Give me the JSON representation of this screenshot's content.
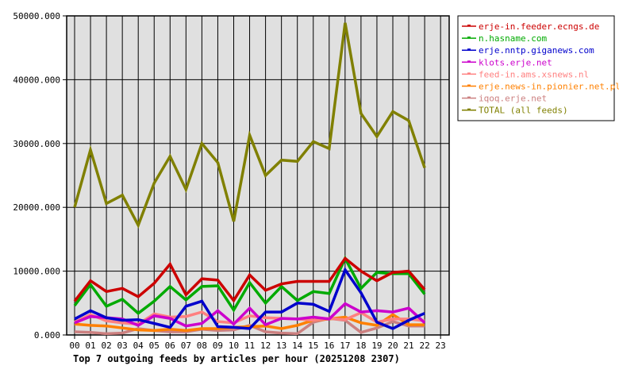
{
  "chart_data": {
    "type": "line",
    "title": "Top 7 outgoing feeds by articles per hour (20251208 2307)",
    "xlabel": "",
    "ylabel": "",
    "ylim": [
      0,
      50000
    ],
    "yticks": [
      "0.000",
      "10000.000",
      "20000.000",
      "30000.000",
      "40000.000",
      "50000.000"
    ],
    "categories": [
      "00",
      "01",
      "02",
      "03",
      "04",
      "05",
      "06",
      "07",
      "08",
      "09",
      "10",
      "11",
      "12",
      "13",
      "14",
      "15",
      "16",
      "17",
      "18",
      "19",
      "20",
      "21",
      "22",
      "23"
    ],
    "grid": true,
    "legend_position": "right",
    "series": [
      {
        "name": "erje-in.feeder.ecngs.de",
        "color": "#cc0000",
        "values": [
          5300,
          8500,
          6800,
          7300,
          6000,
          8100,
          11100,
          6300,
          8800,
          8600,
          5400,
          9400,
          7000,
          8000,
          8400,
          8400,
          8400,
          12000,
          10000,
          8500,
          9800,
          10000,
          7100
        ]
      },
      {
        "name": "n.hasname.com",
        "color": "#00aa00",
        "values": [
          4600,
          7900,
          4500,
          5600,
          3400,
          5300,
          7600,
          5500,
          7600,
          7700,
          3900,
          8200,
          5000,
          7600,
          5400,
          6800,
          6500,
          12000,
          7300,
          9800,
          9600,
          9600,
          6400
        ]
      },
      {
        "name": "erje.nntp.giganews.com",
        "color": "#0000cc",
        "values": [
          2500,
          3800,
          2700,
          2300,
          2400,
          1800,
          1200,
          4500,
          5300,
          1300,
          1200,
          1000,
          3600,
          3600,
          5000,
          4800,
          3700,
          10200,
          6600,
          2000,
          1000,
          2300,
          3400
        ]
      },
      {
        "name": "klots.erje.net",
        "color": "#cc00cc",
        "values": [
          1900,
          2900,
          2700,
          2500,
          1500,
          3000,
          2600,
          1400,
          1800,
          3800,
          1700,
          4200,
          1600,
          2600,
          2500,
          2800,
          2500,
          4900,
          3600,
          3800,
          3600,
          4200,
          1900
        ]
      },
      {
        "name": "feed-in.ams.xsnews.nl",
        "color": "#ff8080",
        "values": [
          2000,
          3200,
          2200,
          1900,
          1700,
          3300,
          2800,
          2900,
          3600,
          2100,
          1900,
          3000,
          2700,
          2600,
          2500,
          2300,
          2600,
          2400,
          3500,
          2000,
          2500,
          2500,
          2200
        ]
      },
      {
        "name": "erje.news-in.pionier.net.pl",
        "color": "#ff8000",
        "values": [
          1700,
          1500,
          1400,
          1100,
          800,
          700,
          900,
          700,
          1000,
          1000,
          1200,
          1300,
          1400,
          1000,
          1500,
          2300,
          2500,
          2800,
          1900,
          1500,
          3200,
          1600,
          1600
        ]
      },
      {
        "name": "iqoq.erje.net",
        "color": "#cc8080",
        "values": [
          500,
          400,
          200,
          300,
          1000,
          700,
          500,
          500,
          900,
          700,
          800,
          1500,
          500,
          300,
          200,
          2000,
          2600,
          2300,
          400,
          1100,
          2100,
          1400,
          1400
        ]
      },
      {
        "name": "TOTAL (all feeds)",
        "color": "#808000",
        "values": [
          20000,
          29000,
          20600,
          21900,
          17200,
          23800,
          28000,
          22800,
          30000,
          27000,
          17800,
          31300,
          25000,
          27400,
          27200,
          30300,
          29200,
          48900,
          34700,
          31100,
          35000,
          33600,
          26200
        ]
      }
    ]
  }
}
